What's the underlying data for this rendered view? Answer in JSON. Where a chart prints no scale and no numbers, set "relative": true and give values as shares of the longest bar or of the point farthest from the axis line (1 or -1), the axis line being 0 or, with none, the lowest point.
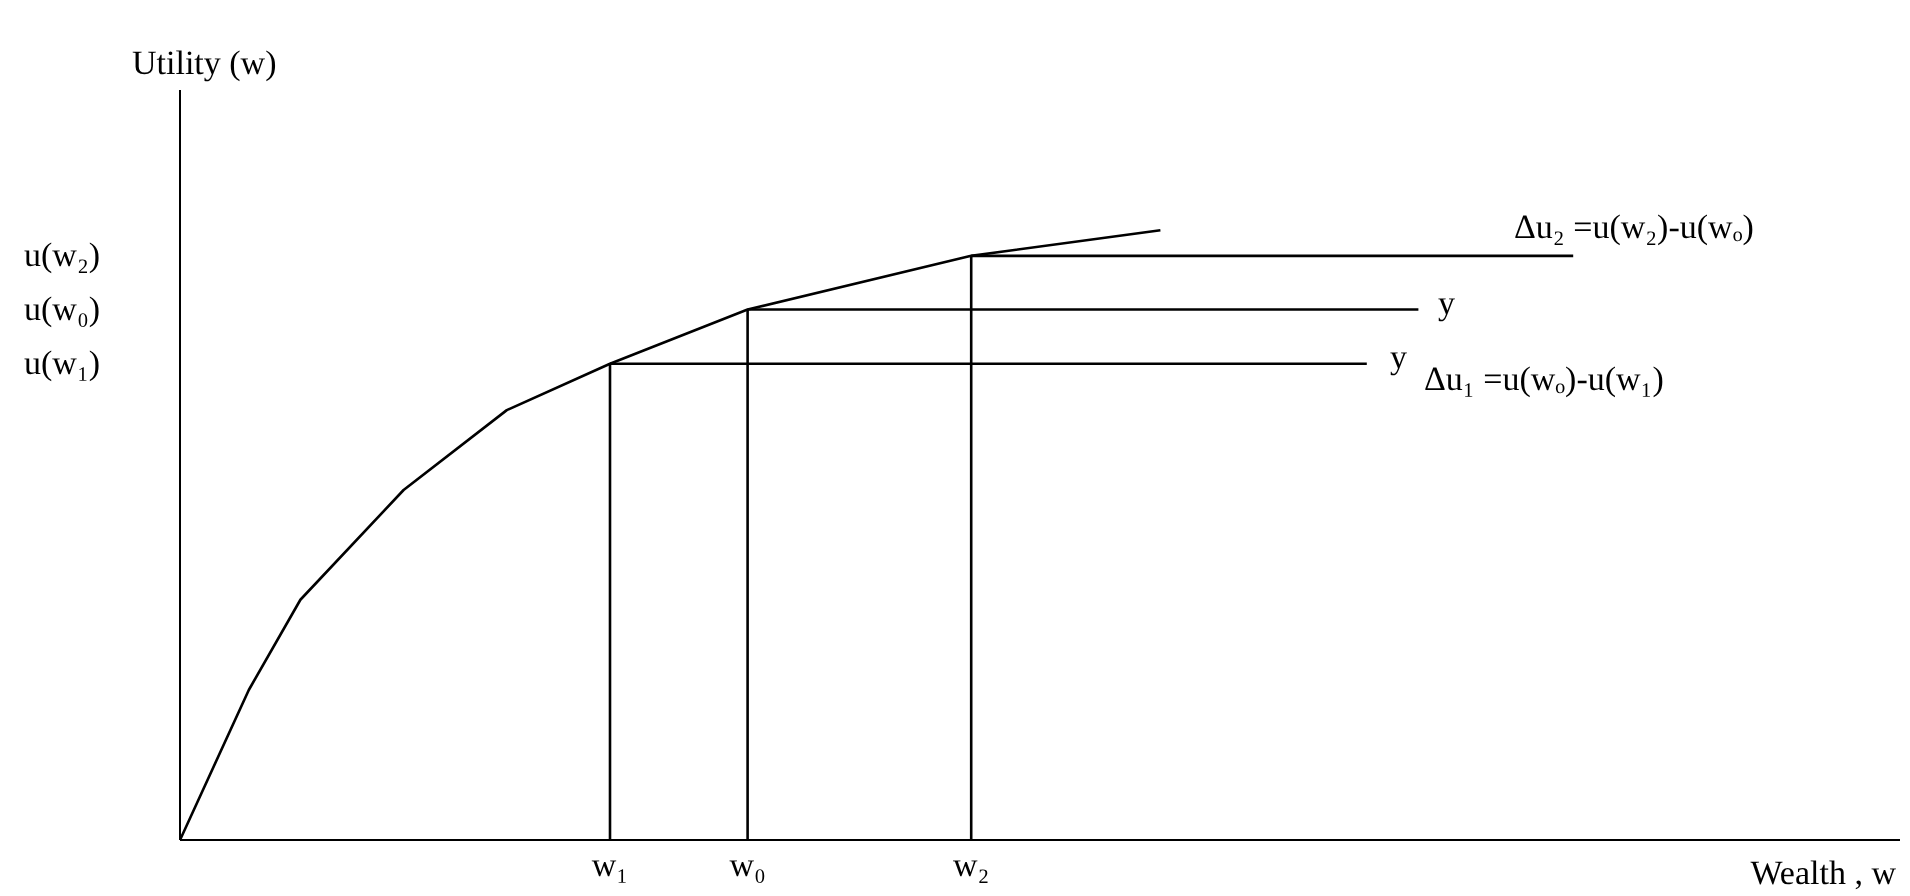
{
  "chart_data": {
    "type": "line",
    "xlabel": "Wealth , w",
    "ylabel": "Utility (w)",
    "relative": true,
    "categories": [
      null,
      null,
      null,
      null,
      null,
      null,
      null,
      null,
      null,
      null,
      null,
      null,
      null,
      null,
      null,
      null,
      null,
      null,
      null,
      null,
      null,
      null,
      null,
      null,
      null,
      "w₁",
      null,
      null,
      null,
      null,
      null,
      null,
      null,
      "w₀",
      null,
      null,
      null,
      null,
      null,
      null,
      null,
      null,
      null,
      null,
      null,
      null,
      "w₂",
      null,
      null,
      null,
      null,
      null,
      null,
      null,
      null,
      null,
      null,
      null,
      null,
      null,
      null,
      null,
      null,
      null,
      null,
      null,
      null,
      null,
      null,
      null,
      null,
      null,
      null,
      null,
      null,
      null,
      null,
      null,
      null,
      null,
      null,
      null,
      null,
      null,
      null,
      null,
      null,
      null,
      null,
      null,
      null,
      null,
      null,
      null,
      null,
      null,
      null,
      null,
      null,
      null,
      null
    ],
    "marker": "none",
    "line_style": "solid",
    "color": "#000000",
    "series": [
      {
        "values": [
          0,
          null,
          null,
          null,
          0.246,
          null,
          null,
          0.394,
          null,
          null,
          null,
          null,
          null,
          0.574,
          null,
          null,
          null,
          null,
          null,
          0.705,
          null,
          null,
          null,
          null,
          null,
          0.781,
          null,
          null,
          null,
          null,
          null,
          null,
          null,
          0.87,
          null,
          null,
          null,
          null,
          null,
          null,
          null,
          null,
          null,
          null,
          null,
          null,
          0.958,
          null,
          null,
          null,
          null,
          null,
          null,
          null,
          null,
          null,
          null,
          1,
          null,
          null,
          null,
          null,
          null,
          null,
          null,
          null,
          null,
          null,
          null,
          null,
          null,
          null,
          null,
          null,
          null,
          null,
          null,
          null,
          null,
          null,
          null,
          null,
          null,
          null,
          null,
          null,
          null,
          null,
          null,
          null,
          null,
          null,
          null,
          null,
          null,
          null,
          null,
          null,
          null,
          null,
          null
        ]
      },
      {
        "x": [
          "w₁",
          "w₁"
        ],
        "values": [
          0,
          0.781
        ]
      },
      {
        "x": [
          "w₀",
          "w₀"
        ],
        "values": [
          0,
          0.87
        ]
      },
      {
        "x": [
          "w₂",
          "w₂"
        ],
        "values": [
          0,
          0.958
        ]
      },
      {
        "values": [
          null,
          null,
          null,
          null,
          null,
          null,
          null,
          null,
          null,
          null,
          null,
          null,
          null,
          null,
          null,
          null,
          null,
          null,
          null,
          null,
          null,
          null,
          null,
          null,
          null,
          0.781,
          null,
          null,
          null,
          null,
          null,
          null,
          null,
          null,
          null,
          null,
          null,
          null,
          null,
          null,
          null,
          null,
          null,
          null,
          null,
          null,
          null,
          null,
          null,
          null,
          null,
          null,
          null,
          null,
          null,
          null,
          null,
          null,
          null,
          null,
          null,
          null,
          null,
          null,
          null,
          null,
          null,
          null,
          null,
          0.781,
          null,
          null,
          null,
          null,
          null,
          null,
          null,
          null,
          null,
          null,
          null,
          null,
          null,
          null,
          null,
          null,
          null,
          null,
          null,
          null,
          null,
          null,
          null,
          null,
          null,
          null,
          null,
          null,
          null,
          null,
          null
        ]
      },
      {
        "values": [
          null,
          null,
          null,
          null,
          null,
          null,
          null,
          null,
          null,
          null,
          null,
          null,
          null,
          null,
          null,
          null,
          null,
          null,
          null,
          null,
          null,
          null,
          null,
          null,
          null,
          null,
          null,
          null,
          null,
          null,
          null,
          null,
          null,
          0.87,
          null,
          null,
          null,
          null,
          null,
          null,
          null,
          null,
          null,
          null,
          null,
          null,
          null,
          null,
          null,
          null,
          null,
          null,
          null,
          null,
          null,
          null,
          null,
          null,
          null,
          null,
          null,
          null,
          null,
          null,
          null,
          null,
          null,
          null,
          null,
          null,
          null,
          null,
          0.87,
          null,
          null,
          null,
          null,
          null,
          null,
          null,
          null,
          null,
          null,
          null,
          null,
          null,
          null,
          null,
          null,
          null,
          null,
          null,
          null,
          null,
          null,
          null,
          null,
          null,
          null,
          null,
          null
        ]
      },
      {
        "values": [
          null,
          null,
          null,
          null,
          null,
          null,
          null,
          null,
          null,
          null,
          null,
          null,
          null,
          null,
          null,
          null,
          null,
          null,
          null,
          null,
          null,
          null,
          null,
          null,
          null,
          null,
          null,
          null,
          null,
          null,
          null,
          null,
          null,
          null,
          null,
          null,
          null,
          null,
          null,
          null,
          null,
          null,
          null,
          null,
          null,
          null,
          0.958,
          null,
          null,
          null,
          null,
          null,
          null,
          null,
          null,
          null,
          null,
          null,
          null,
          null,
          null,
          null,
          null,
          null,
          null,
          null,
          null,
          null,
          null,
          null,
          null,
          null,
          null,
          null,
          null,
          null,
          null,
          null,
          null,
          null,
          null,
          0.958,
          null,
          null,
          null,
          null,
          null,
          null,
          null,
          null,
          null,
          null,
          null,
          null,
          null,
          null,
          null,
          null,
          null,
          null,
          null
        ]
      }
    ],
    "annotations": [
      "u(w₂)",
      "u(w₀)",
      "u(w₁)",
      "y",
      "y",
      "Δu₂ =u(w₂)-u(wₒ)",
      "Δu₁ =u(wₒ)-u(w₁)"
    ]
  }
}
